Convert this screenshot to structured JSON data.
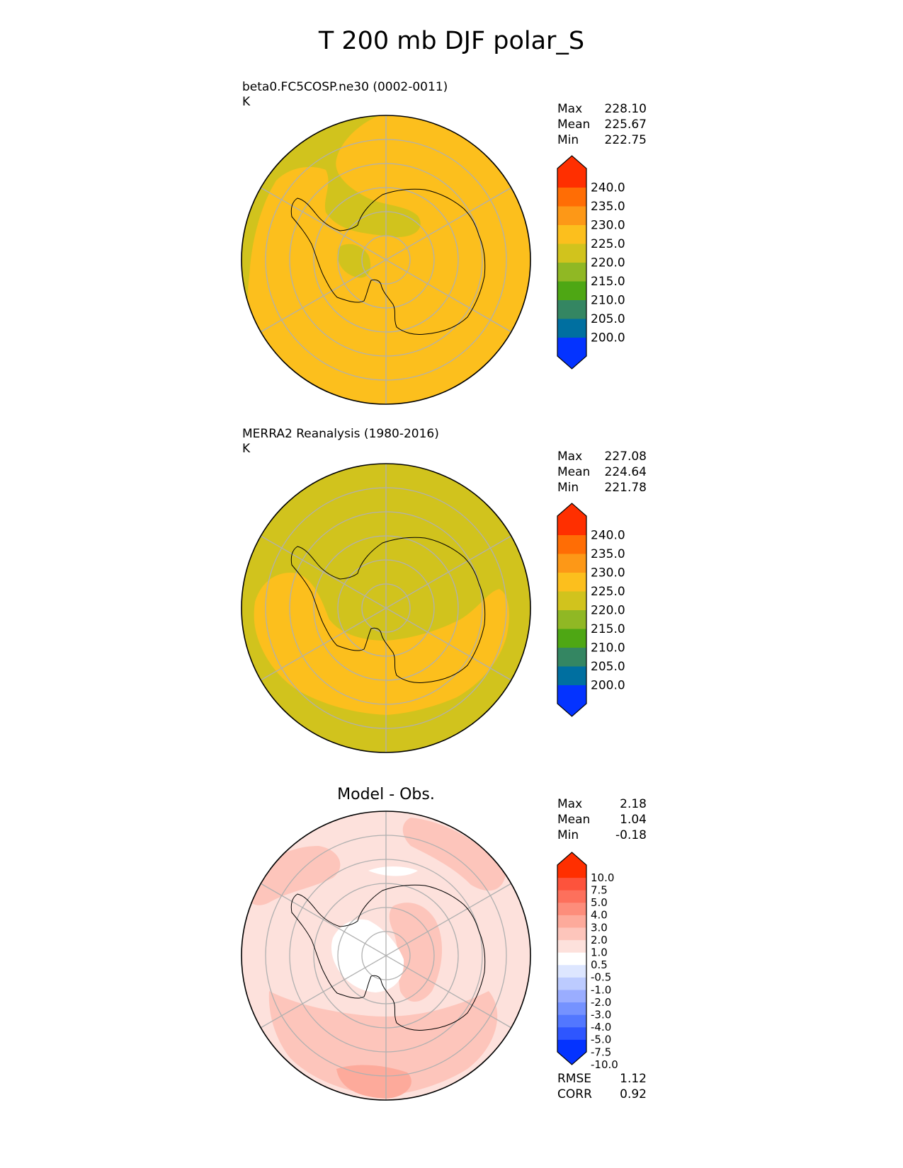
{
  "title": "T 200 mb DJF polar_S",
  "colors": {
    "abs_levels": [
      "#0433ff",
      "#006fa0",
      "#348662",
      "#4ea714",
      "#90b824",
      "#d1c31d",
      "#fcbf1d",
      "#fd9817",
      "#ff6d05",
      "#ff2f00"
    ],
    "diff_levels": [
      "#0433ff",
      "#2e56ff",
      "#5277ff",
      "#7592ff",
      "#9aadff",
      "#bccbff",
      "#dde6ff",
      "#ffffff",
      "#fde1dc",
      "#fdc5bb",
      "#fdaa9b",
      "#fd8d7b",
      "#fd705c",
      "#fd533c",
      "#ff2f00"
    ],
    "coast": "#000000",
    "grid": "#b0b0b0"
  },
  "panels": [
    {
      "id": "model",
      "subtitle_line1": "beta0.FC5COSP.ne30 (0002-0011)",
      "subtitle_line2": "K",
      "stats": [
        [
          "Max",
          "228.10"
        ],
        [
          "Mean",
          "225.67"
        ],
        [
          "Min",
          "222.75"
        ]
      ],
      "colorbar_labels": [
        "240.0",
        "235.0",
        "230.0",
        "225.0",
        "220.0",
        "215.0",
        "210.0",
        "205.0",
        "200.0"
      ]
    },
    {
      "id": "obs",
      "subtitle_line1": "MERRA2 Reanalysis (1980-2016)",
      "subtitle_line2": "K",
      "stats": [
        [
          "Max",
          "227.08"
        ],
        [
          "Mean",
          "224.64"
        ],
        [
          "Min",
          "221.78"
        ]
      ],
      "colorbar_labels": [
        "240.0",
        "235.0",
        "230.0",
        "225.0",
        "220.0",
        "215.0",
        "210.0",
        "205.0",
        "200.0"
      ]
    },
    {
      "id": "diff",
      "title": "Model - Obs.",
      "stats": [
        [
          "Max",
          "2.18"
        ],
        [
          "Mean",
          "1.04"
        ],
        [
          "Min",
          "-0.18"
        ]
      ],
      "extra_stats": [
        [
          "RMSE",
          "1.12"
        ],
        [
          "CORR",
          "0.92"
        ]
      ],
      "colorbar_labels": [
        "10.0",
        "7.5",
        "5.0",
        "4.0",
        "3.0",
        "2.0",
        "1.0",
        "0.5",
        "-0.5",
        "-1.0",
        "-2.0",
        "-3.0",
        "-4.0",
        "-5.0",
        "-7.5",
        "-10.0"
      ]
    }
  ]
}
